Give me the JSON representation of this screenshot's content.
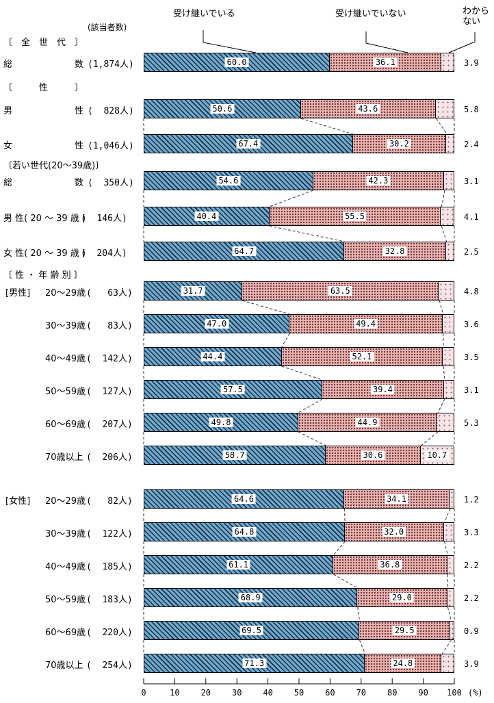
{
  "legend": [
    "受け継いでいる",
    "受け継いでいない",
    "わから\nない"
  ],
  "respondents_header": "(該当者数)",
  "colors": {
    "inherit_blue": "#6FA9CC",
    "not_inherit_pink": "#ECAFAD",
    "dont_know_lightpink": "#FAE3E6",
    "hatch_dark": "#081630",
    "border": "#000000",
    "label_box_bg": "#FFFFFF"
  },
  "chart_data": {
    "type": "bar",
    "orientation": "horizontal-stacked",
    "unit": "%",
    "xlim": [
      0,
      100
    ],
    "x_ticks": [
      "0",
      "10",
      "20",
      "30",
      "40",
      "50",
      "60",
      "70",
      "80",
      "90",
      "100"
    ],
    "x_unit_label": "(%)",
    "grid": false,
    "legend_position": "top",
    "series_names": [
      "受け継いでいる",
      "受け継いでいない",
      "わからない"
    ],
    "sections": [
      "〔　全　世　代　〕",
      "〔　　　性　　　〕",
      "〔若い世代(20～39歳)〕",
      "〔 性 ・ 年 齢 別 〕"
    ],
    "rows": [
      {
        "label": "総　　　　　　　数",
        "count": "(1,874人)",
        "values": [
          "60.0",
          "36.1",
          "3.9"
        ]
      },
      {
        "label": "男　　　　　　　性",
        "count": "(  828人)",
        "values": [
          "50.6",
          "43.6",
          "5.8"
        ]
      },
      {
        "label": "女　　　　　　　性",
        "count": "(1,046人)",
        "values": [
          "67.4",
          "30.2",
          "2.4"
        ]
      },
      {
        "label": "総　　　　　　　数",
        "count": "(  350人)",
        "values": [
          "54.6",
          "42.3",
          "3.1"
        ]
      },
      {
        "label": "男 性( 20 ～ 39 歳 )",
        "count": "(  146人)",
        "values": [
          "40.4",
          "55.5",
          "4.1"
        ]
      },
      {
        "label": "女 性( 20 ～ 39 歳 )",
        "count": "(  204人)",
        "values": [
          "64.7",
          "32.8",
          "2.5"
        ]
      },
      {
        "prefix": "[男性]",
        "label": "20～29歳",
        "count": "(   63人)",
        "values": [
          "31.7",
          "63.5",
          "4.8"
        ]
      },
      {
        "label": "30～39歳",
        "count": "(   83人)",
        "values": [
          "47.0",
          "49.4",
          "3.6"
        ]
      },
      {
        "label": "40～49歳",
        "count": "(  142人)",
        "values": [
          "44.4",
          "52.1",
          "3.5"
        ]
      },
      {
        "label": "50～59歳",
        "count": "(  127人)",
        "values": [
          "57.5",
          "39.4",
          "3.1"
        ]
      },
      {
        "label": "60～69歳",
        "count": "(  207人)",
        "values": [
          "49.8",
          "44.9",
          "5.3"
        ]
      },
      {
        "label": "70歳以上",
        "count": "(  206人)",
        "values": [
          "58.7",
          "30.6",
          "10.7"
        ],
        "dk_inside": true
      },
      {
        "prefix": "[女性]",
        "label": "20～29歳",
        "count": "(   82人)",
        "values": [
          "64.6",
          "34.1",
          "1.2"
        ]
      },
      {
        "label": "30～39歳",
        "count": "(  122人)",
        "values": [
          "64.8",
          "32.0",
          "3.3"
        ]
      },
      {
        "label": "40～49歳",
        "count": "(  185人)",
        "values": [
          "61.1",
          "36.8",
          "2.2"
        ]
      },
      {
        "label": "50～59歳",
        "count": "(  183人)",
        "values": [
          "68.9",
          "29.0",
          "2.2"
        ]
      },
      {
        "label": "60～69歳",
        "count": "(  220人)",
        "values": [
          "69.5",
          "29.5",
          "0.9"
        ]
      },
      {
        "label": "70歳以上",
        "count": "(  254人)",
        "values": [
          "71.3",
          "24.8",
          "3.9"
        ]
      }
    ]
  }
}
